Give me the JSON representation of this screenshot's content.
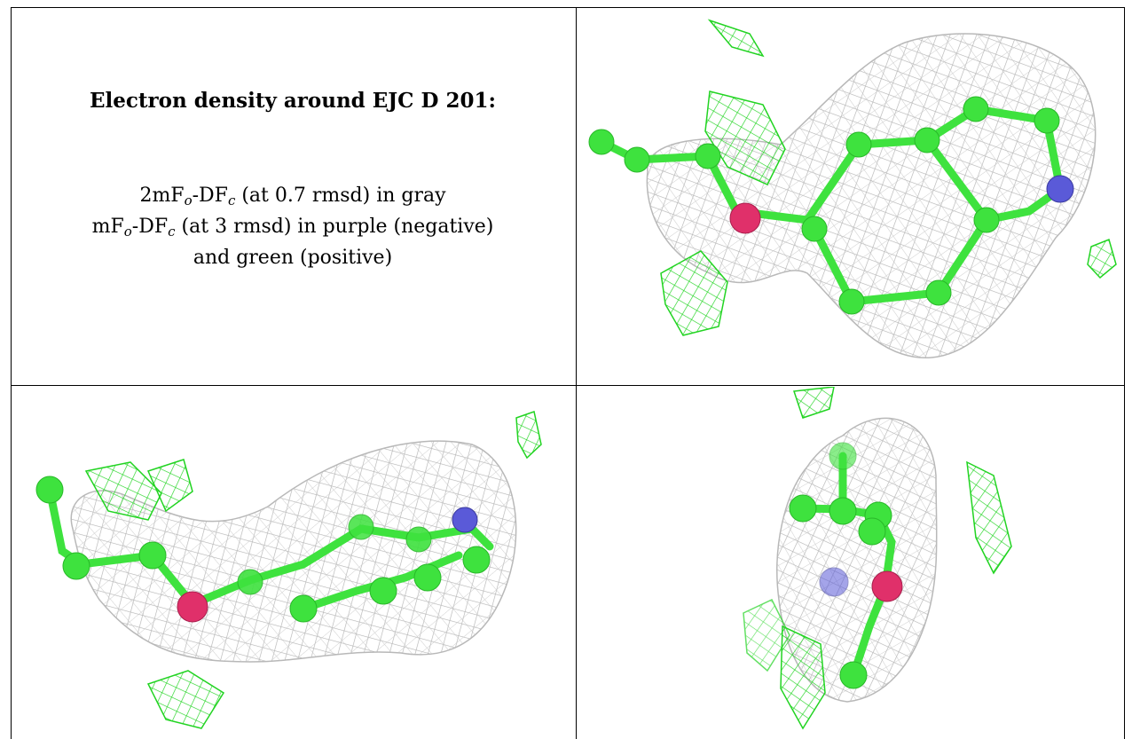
{
  "caption_panel": {
    "title": "Electron density around EJC D 201:",
    "line1": {
      "a": "2mF",
      "b": "o",
      "c": "-DF",
      "d": "c",
      "e": " (at 0.7 rmsd) in gray"
    },
    "line2": {
      "a": "mF",
      "b": "o",
      "c": "-DF",
      "d": "c",
      "e": " (at 3 rmsd) in purple (negative)"
    },
    "line3": "and green (positive)"
  },
  "colors": {
    "mesh_gray": "#b4b4b4",
    "carbon_green": "#3ee23e",
    "oxygen_red": "#e0306a",
    "nitrogen_blue": "#5a5ad8",
    "positive_difference_green": "#22d422"
  },
  "panels": [
    {
      "view": "top-right"
    },
    {
      "view": "bottom-left"
    },
    {
      "view": "bottom-right"
    }
  ]
}
